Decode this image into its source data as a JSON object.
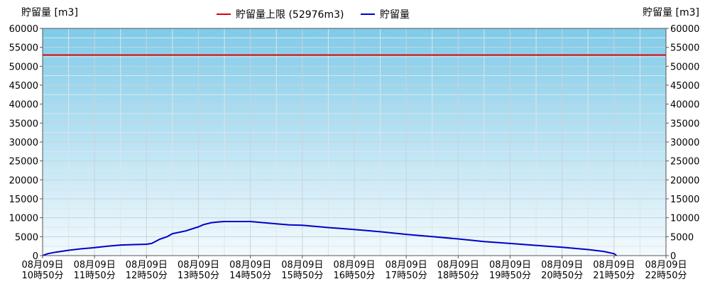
{
  "chart_data": {
    "type": "line",
    "y_axis_label_left": "貯留量 [m3]",
    "y_axis_label_right": "貯留量 [m3]",
    "ylim": [
      0,
      60000
    ],
    "y_ticks": [
      0,
      5000,
      10000,
      15000,
      20000,
      25000,
      30000,
      35000,
      40000,
      45000,
      50000,
      55000,
      60000
    ],
    "x_tick_labels": [
      [
        "08月09日",
        "10時50分"
      ],
      [
        "08月09日",
        "11時50分"
      ],
      [
        "08月09日",
        "12時50分"
      ],
      [
        "08月09日",
        "13時50分"
      ],
      [
        "08月09日",
        "14時50分"
      ],
      [
        "08月09日",
        "15時50分"
      ],
      [
        "08月09日",
        "16時50分"
      ],
      [
        "08月09日",
        "17時50分"
      ],
      [
        "08月09日",
        "18時50分"
      ],
      [
        "08月09日",
        "19時50分"
      ],
      [
        "08月09日",
        "20時50分"
      ],
      [
        "08月09日",
        "21時50分"
      ],
      [
        "08月09日",
        "22時50分"
      ]
    ],
    "x_unit": "hours after 08月09日 10時50分",
    "xlim": [
      0,
      12
    ],
    "grid": true,
    "legend_position": "top-center",
    "limit": {
      "name": "貯留量上限 (52976m3)",
      "value": 52976,
      "color": "#e00000"
    },
    "series": [
      {
        "name": "貯留量",
        "color": "#0000cc",
        "x": [
          0,
          0.1,
          0.25,
          0.5,
          0.75,
          1.0,
          1.25,
          1.5,
          1.75,
          2.0,
          2.1,
          2.25,
          2.4,
          2.5,
          2.75,
          3.0,
          3.1,
          3.25,
          3.4,
          3.5,
          3.75,
          4.0,
          4.25,
          4.5,
          4.75,
          5.0,
          5.5,
          6.0,
          6.5,
          7.0,
          7.5,
          8.0,
          8.5,
          9.0,
          9.5,
          10.0,
          10.5,
          10.8,
          11.0,
          11.05
        ],
        "y": [
          0,
          500,
          900,
          1400,
          1800,
          2100,
          2500,
          2800,
          2900,
          3000,
          3200,
          4300,
          5000,
          5800,
          6500,
          7600,
          8200,
          8700,
          8900,
          9000,
          9000,
          9000,
          8700,
          8400,
          8100,
          8000,
          7400,
          6900,
          6300,
          5600,
          5000,
          4400,
          3700,
          3200,
          2700,
          2200,
          1600,
          1100,
          500,
          0
        ]
      }
    ]
  }
}
